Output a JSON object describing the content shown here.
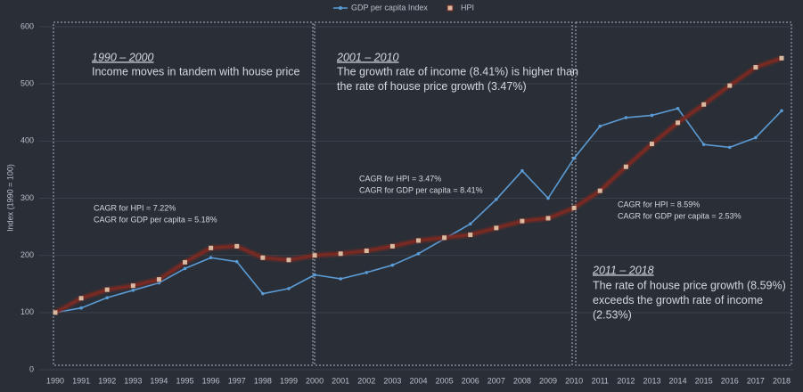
{
  "chart_data": {
    "type": "line",
    "y_label": "Index (1990 = 100)",
    "categories": [
      "1990",
      "1991",
      "1992",
      "1993",
      "1994",
      "1995",
      "1996",
      "1997",
      "1998",
      "1999",
      "2000",
      "2001",
      "2002",
      "2003",
      "2004",
      "2005",
      "2006",
      "2007",
      "2008",
      "2009",
      "2010",
      "2011",
      "2012",
      "2013",
      "2014",
      "2015",
      "2016",
      "2017",
      "2018"
    ],
    "series": [
      {
        "name": "GDP per capita Index",
        "color": "#5b9bd5",
        "values": [
          100,
          108,
          126,
          139,
          152,
          177,
          196,
          189,
          133,
          142,
          166,
          159,
          170,
          183,
          203,
          229,
          255,
          298,
          348,
          300,
          370,
          426,
          441,
          445,
          457,
          394,
          389,
          406,
          453
        ]
      },
      {
        "name": "HPI",
        "color": "#7a2a22",
        "values": [
          100,
          125,
          140,
          147,
          158,
          188,
          213,
          216,
          196,
          192,
          200,
          203,
          208,
          216,
          226,
          231,
          236,
          248,
          260,
          265,
          283,
          313,
          355,
          395,
          432,
          464,
          497,
          529,
          545
        ]
      }
    ],
    "ylim": [
      0,
      600
    ],
    "yticks": [
      0,
      100,
      200,
      300,
      400,
      500,
      600
    ],
    "grid": true,
    "legend": "top",
    "annotations": [
      {
        "heading": "1990 – 2000",
        "text": [
          "Income moves in tandem with house price"
        ],
        "cagr": [
          "CAGR for HPI = 7.22%",
          "CAGR for GDP per capita = 5.18%"
        ]
      },
      {
        "heading": "2001 – 2010",
        "text": [
          "The growth rate of income (8.41%) is higher than",
          "the rate of house price growth (3.47%)"
        ],
        "cagr": [
          "CAGR for HPI = 3.47%",
          "CAGR for GDP per capita = 8.41%"
        ]
      },
      {
        "heading": "2011 – 2018",
        "text": [
          "The rate of house price growth (8.59%)",
          "exceeds the growth rate of income",
          "(2.53%)"
        ],
        "cagr": [
          "CAGR for HPI = 8.59%",
          "CAGR for GDP per capita = 2.53%"
        ]
      }
    ]
  }
}
